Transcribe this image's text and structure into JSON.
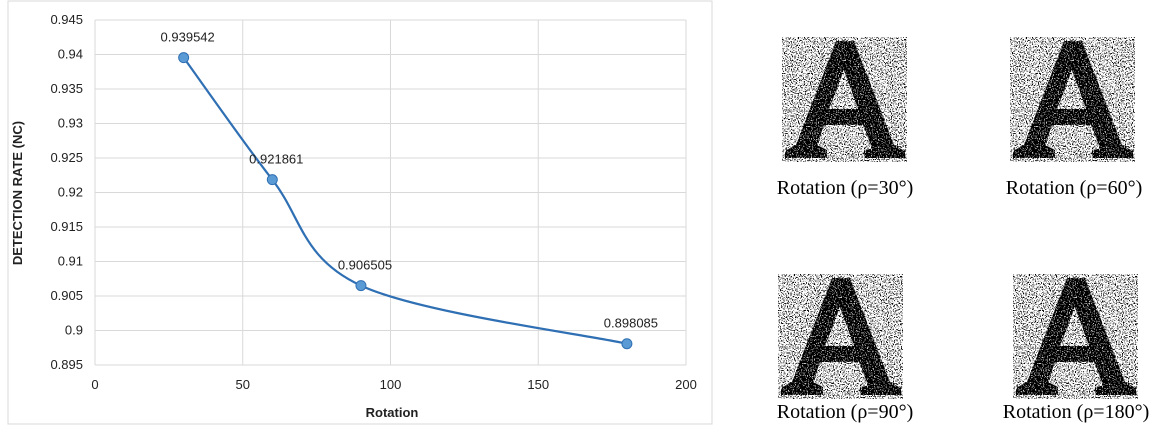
{
  "chart_data": {
    "type": "line",
    "x_label": "Rotation",
    "y_label": "DETECTION RATE (NC)",
    "x": [
      30,
      60,
      90,
      180
    ],
    "series": [
      {
        "values": [
          0.939542,
          0.921861,
          0.906505,
          0.898085
        ],
        "color": "#2f6fb3"
      }
    ],
    "xlim": [
      0,
      200
    ],
    "xticks": [
      0,
      50,
      100,
      150,
      200
    ],
    "ylim": [
      0.895,
      0.945
    ],
    "yticks": [
      0.895,
      0.9,
      0.905,
      0.91,
      0.915,
      0.92,
      0.925,
      0.93,
      0.935,
      0.94,
      0.945
    ],
    "grid": true,
    "smooth": true,
    "data_labels": true
  },
  "figures": [
    {
      "caption": "Rotation (ρ=30°)"
    },
    {
      "caption": "Rotation (ρ=60°)"
    },
    {
      "caption": "Rotation (ρ=90°)"
    },
    {
      "caption": "Rotation (ρ=180°)"
    }
  ]
}
